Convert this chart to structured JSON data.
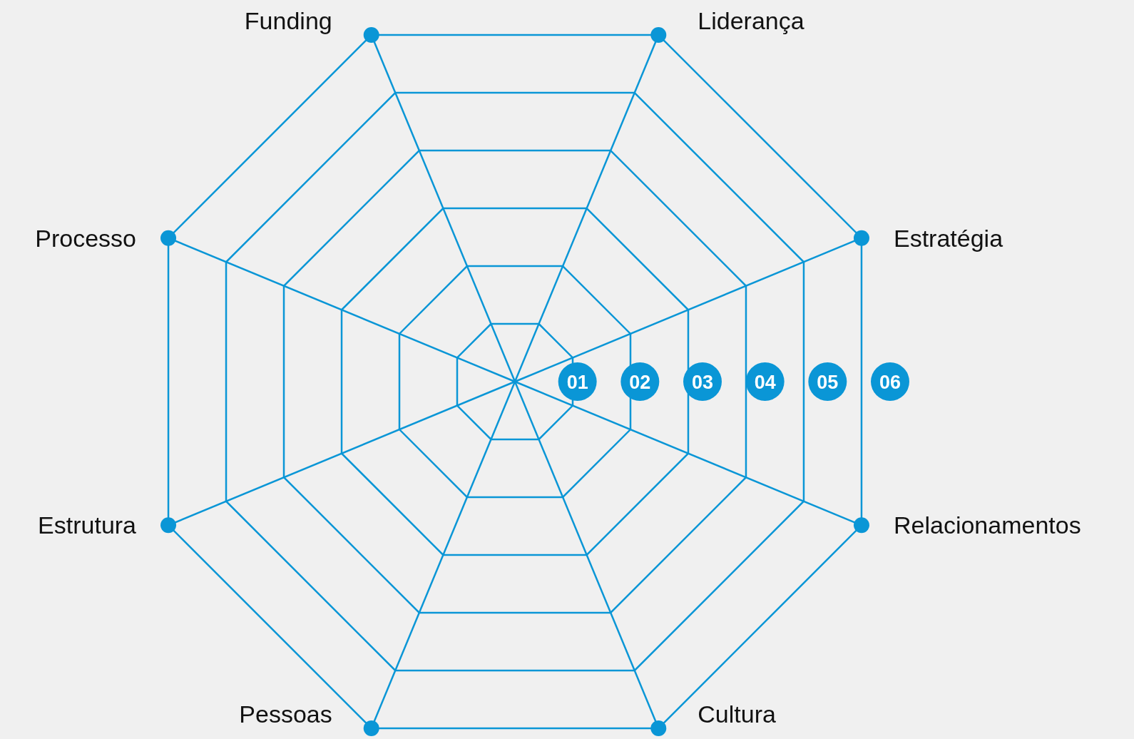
{
  "chart_data": {
    "type": "radar",
    "categories": [
      "Liderança",
      "Estratégia",
      "Relacionamentos",
      "Cultura",
      "Pessoas",
      "Estrutura",
      "Processo",
      "Funding"
    ],
    "ylim": [
      0,
      6
    ],
    "yticks": [
      {
        "value": 1,
        "label": "01"
      },
      {
        "value": 2,
        "label": "02"
      },
      {
        "value": 3,
        "label": "03"
      },
      {
        "value": 4,
        "label": "04"
      },
      {
        "value": 5,
        "label": "05"
      },
      {
        "value": 6,
        "label": "06"
      }
    ],
    "grid": true
  }
}
